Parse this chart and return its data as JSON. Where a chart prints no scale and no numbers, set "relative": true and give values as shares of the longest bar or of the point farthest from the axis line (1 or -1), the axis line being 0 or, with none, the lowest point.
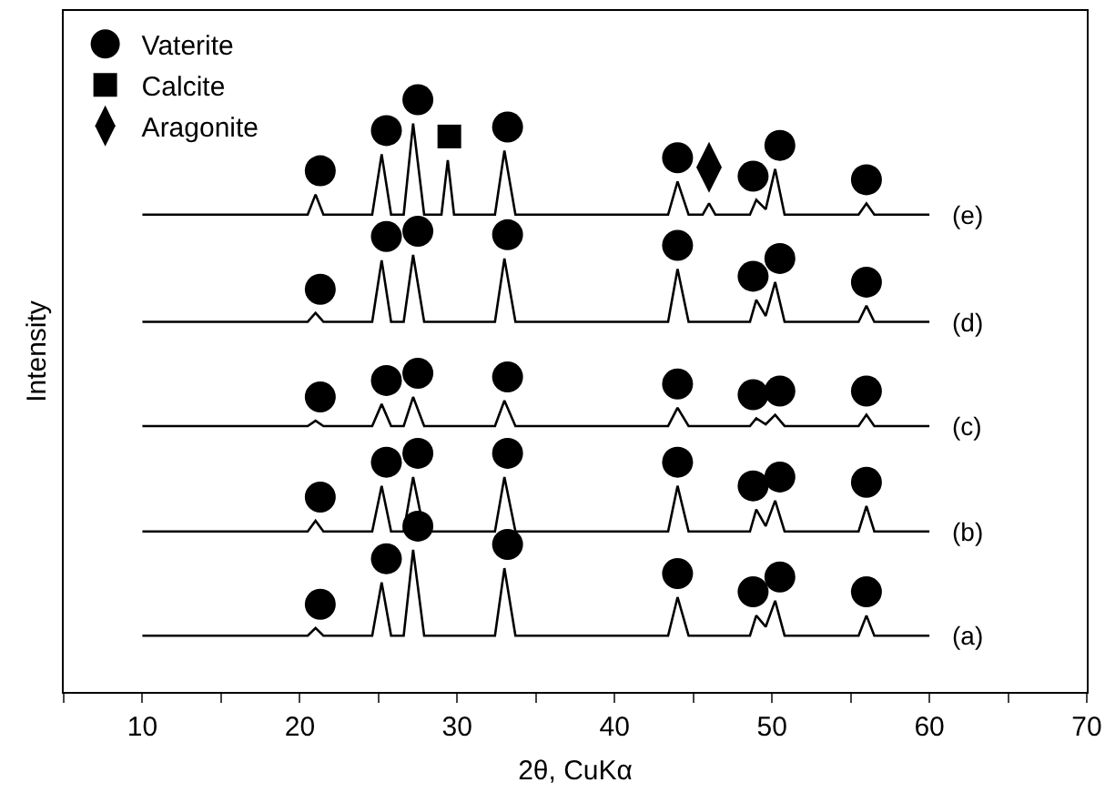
{
  "chart_data": {
    "type": "line",
    "relative": true,
    "xlabel": "2θ, CuKα",
    "ylabel": "Intensity",
    "xlim": [
      5,
      70
    ],
    "xticks": [
      {
        "value": 5,
        "label": null
      },
      10,
      {
        "value": 15,
        "label": null
      },
      20,
      {
        "value": 25,
        "label": null
      },
      30,
      {
        "value": 35,
        "label": null
      },
      40,
      {
        "value": 45,
        "label": null
      },
      50,
      {
        "value": 55,
        "label": null
      },
      60,
      {
        "value": 65,
        "label": null
      },
      70
    ],
    "grid": false,
    "legend": "top left",
    "line_style": "solid",
    "marker": "none",
    "series": [
      {
        "name": "(a)",
        "color": "#000000",
        "x": [
          10,
          20.5,
          21,
          21.5,
          24.6,
          25.2,
          25.8,
          26.6,
          27.2,
          27.9,
          32.4,
          33,
          33.7,
          43.4,
          44,
          44.7,
          48.6,
          49,
          49.6,
          50.2,
          50.8,
          55.5,
          56,
          56.5,
          60
        ],
        "values": [
          0.095,
          0.095,
          0.108,
          0.095,
          0.095,
          0.185,
          0.095,
          0.095,
          0.24,
          0.095,
          0.095,
          0.209,
          0.095,
          0.095,
          0.16,
          0.095,
          0.095,
          0.129,
          0.11,
          0.154,
          0.095,
          0.095,
          0.129,
          0.095,
          0.095
        ]
      },
      {
        "name": "(b)",
        "color": "#000000",
        "x": [
          10,
          20.5,
          21,
          21.5,
          24.6,
          25.2,
          25.8,
          26.6,
          27.2,
          27.9,
          32.4,
          33,
          33.7,
          43.4,
          44,
          44.7,
          48.6,
          49,
          49.6,
          50.2,
          50.8,
          55.5,
          56,
          56.5,
          60
        ],
        "values": [
          0.271,
          0.271,
          0.289,
          0.271,
          0.271,
          0.348,
          0.271,
          0.271,
          0.363,
          0.271,
          0.271,
          0.363,
          0.271,
          0.271,
          0.348,
          0.271,
          0.271,
          0.308,
          0.28,
          0.323,
          0.271,
          0.271,
          0.314,
          0.271,
          0.271
        ]
      },
      {
        "name": "(c)",
        "color": "#000000",
        "x": [
          10,
          20.5,
          21,
          21.5,
          24.6,
          25.2,
          25.8,
          26.6,
          27.2,
          27.9,
          32.4,
          33,
          33.7,
          43.4,
          44,
          44.7,
          48.6,
          49,
          49.6,
          50.2,
          50.8,
          55.5,
          56,
          56.5,
          60
        ],
        "values": [
          0.449,
          0.449,
          0.458,
          0.449,
          0.449,
          0.486,
          0.449,
          0.449,
          0.498,
          0.449,
          0.449,
          0.492,
          0.449,
          0.449,
          0.48,
          0.449,
          0.449,
          0.462,
          0.452,
          0.468,
          0.449,
          0.449,
          0.468,
          0.449,
          0.449
        ]
      },
      {
        "name": "(d)",
        "color": "#000000",
        "x": [
          10,
          20.5,
          21,
          21.5,
          24.6,
          25.2,
          25.8,
          26.6,
          27.2,
          27.9,
          32.4,
          33,
          33.7,
          43.4,
          44,
          44.7,
          48.6,
          49,
          49.6,
          50.2,
          50.8,
          55.5,
          56,
          56.5,
          60
        ],
        "values": [
          0.625,
          0.625,
          0.64,
          0.625,
          0.625,
          0.729,
          0.625,
          0.625,
          0.738,
          0.625,
          0.625,
          0.732,
          0.625,
          0.625,
          0.714,
          0.625,
          0.625,
          0.662,
          0.635,
          0.692,
          0.625,
          0.625,
          0.652,
          0.625,
          0.625
        ]
      },
      {
        "name": "(e)",
        "color": "#000000",
        "x": [
          10,
          20.5,
          21,
          21.5,
          24.6,
          25.2,
          25.8,
          26.6,
          27.2,
          27.9,
          29,
          29.4,
          29.8,
          32.4,
          33,
          33.7,
          43.4,
          44,
          44.7,
          45.6,
          46,
          46.4,
          48.6,
          49,
          49.6,
          50.2,
          50.8,
          55.5,
          56,
          56.5,
          60
        ],
        "values": [
          0.806,
          0.806,
          0.84,
          0.806,
          0.806,
          0.908,
          0.806,
          0.806,
          0.96,
          0.806,
          0.806,
          0.898,
          0.806,
          0.806,
          0.914,
          0.806,
          0.806,
          0.862,
          0.806,
          0.806,
          0.825,
          0.806,
          0.806,
          0.831,
          0.815,
          0.883,
          0.806,
          0.806,
          0.825,
          0.806,
          0.806
        ]
      },
      {
        "name": "Vaterite",
        "type": "scatter",
        "marker": "circle",
        "color": "#000000",
        "x": [
          21.3,
          25.5,
          27.5,
          33.2,
          44,
          48.8,
          50.5,
          56,
          21.3,
          25.5,
          27.5,
          33.2,
          44,
          48.8,
          50.5,
          56,
          21.3,
          25.5,
          27.5,
          33.2,
          44,
          48.8,
          50.5,
          56,
          21.3,
          25.5,
          27.5,
          33.2,
          44,
          48.8,
          50.5,
          56,
          21.3,
          25.5,
          27.5,
          33.2,
          44,
          48.8,
          50.5,
          56
        ],
        "values": [
          0.148,
          0.225,
          0.28,
          0.249,
          0.2,
          0.169,
          0.194,
          0.169,
          0.329,
          0.388,
          0.403,
          0.403,
          0.388,
          0.348,
          0.363,
          0.354,
          0.498,
          0.526,
          0.538,
          0.532,
          0.52,
          0.502,
          0.508,
          0.508,
          0.68,
          0.769,
          0.778,
          0.772,
          0.754,
          0.702,
          0.732,
          0.692,
          0.88,
          0.948,
          1.0,
          0.954,
          0.902,
          0.871,
          0.923,
          0.865
        ]
      },
      {
        "name": "Calcite",
        "type": "scatter",
        "marker": "square",
        "color": "#000000",
        "x": [
          29.5
        ],
        "values": [
          0.938
        ]
      },
      {
        "name": "Aragonite",
        "type": "scatter",
        "marker": "diamond",
        "color": "#000000",
        "x": [
          46
        ],
        "values": [
          0.886
        ]
      }
    ]
  }
}
